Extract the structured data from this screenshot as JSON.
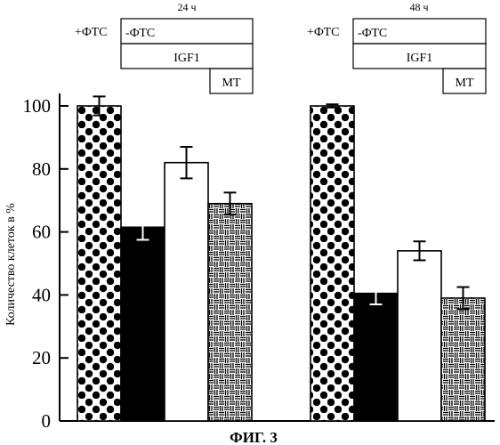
{
  "chart_data": {
    "type": "bar",
    "ylabel": "Количество клеток в %",
    "ylim": [
      0,
      100
    ],
    "yticks": [
      0,
      20,
      40,
      60,
      80,
      100
    ],
    "caption": "ФИГ. 3",
    "series": [
      {
        "name": "+ФТС",
        "pattern": "dots"
      },
      {
        "name": "-ФТС",
        "pattern": "solid-black"
      },
      {
        "name": "IGF1",
        "pattern": "white"
      },
      {
        "name": "МТ",
        "pattern": "hatch"
      }
    ],
    "groups": [
      {
        "title": "24 ч",
        "values": [
          100,
          61.5,
          82,
          69
        ],
        "errors": [
          3,
          4,
          5,
          3.5
        ]
      },
      {
        "title": "48 ч",
        "values": [
          100,
          40.5,
          54,
          39
        ],
        "errors": [
          0.5,
          3.5,
          3,
          3.5
        ]
      }
    ]
  }
}
